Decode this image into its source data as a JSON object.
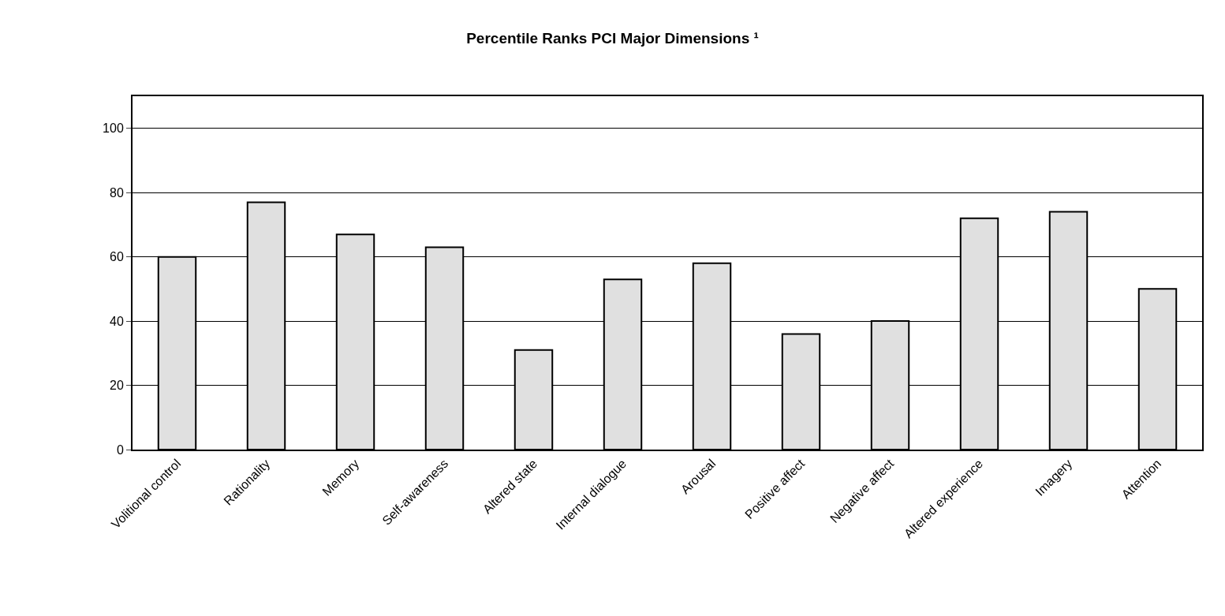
{
  "chart_data": {
    "type": "bar",
    "title": "Percentile Ranks PCI Major Dimensions ¹",
    "categories": [
      "Volitional control",
      "Rationality",
      "Memory",
      "Self-awareness",
      "Altered state",
      "Internal dialogue",
      "Arousal",
      "Positive affect",
      "Negative affect",
      "Altered experience",
      "Imagery",
      "Attention"
    ],
    "values": [
      60,
      77,
      67,
      63,
      31,
      53,
      58,
      36,
      40,
      72,
      74,
      50
    ],
    "color": "#e0e0e0",
    "ylim": [
      0,
      110
    ],
    "yticks": [
      0,
      20,
      40,
      60,
      80,
      100
    ],
    "grid": "y"
  }
}
